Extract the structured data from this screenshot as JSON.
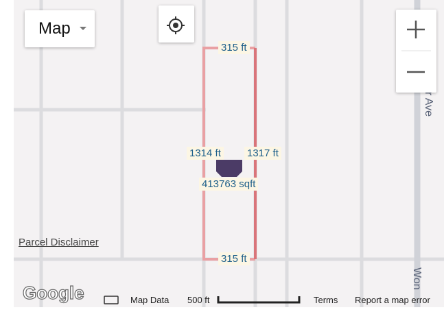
{
  "map_type_button": {
    "label": "Map"
  },
  "parcel": {
    "top_width": "315 ft",
    "left_length": "1314 ft",
    "right_length": "1317 ft",
    "area": "413763 sqft",
    "bottom_width": "315 ft"
  },
  "street_labels": [
    "er Ave",
    "Won"
  ],
  "disclaimer": "Parcel Disclaimer",
  "footer": {
    "logo": "Google",
    "map_data": "Map Data",
    "scale": "500 ft",
    "terms": "Terms",
    "report": "Report a map error"
  }
}
